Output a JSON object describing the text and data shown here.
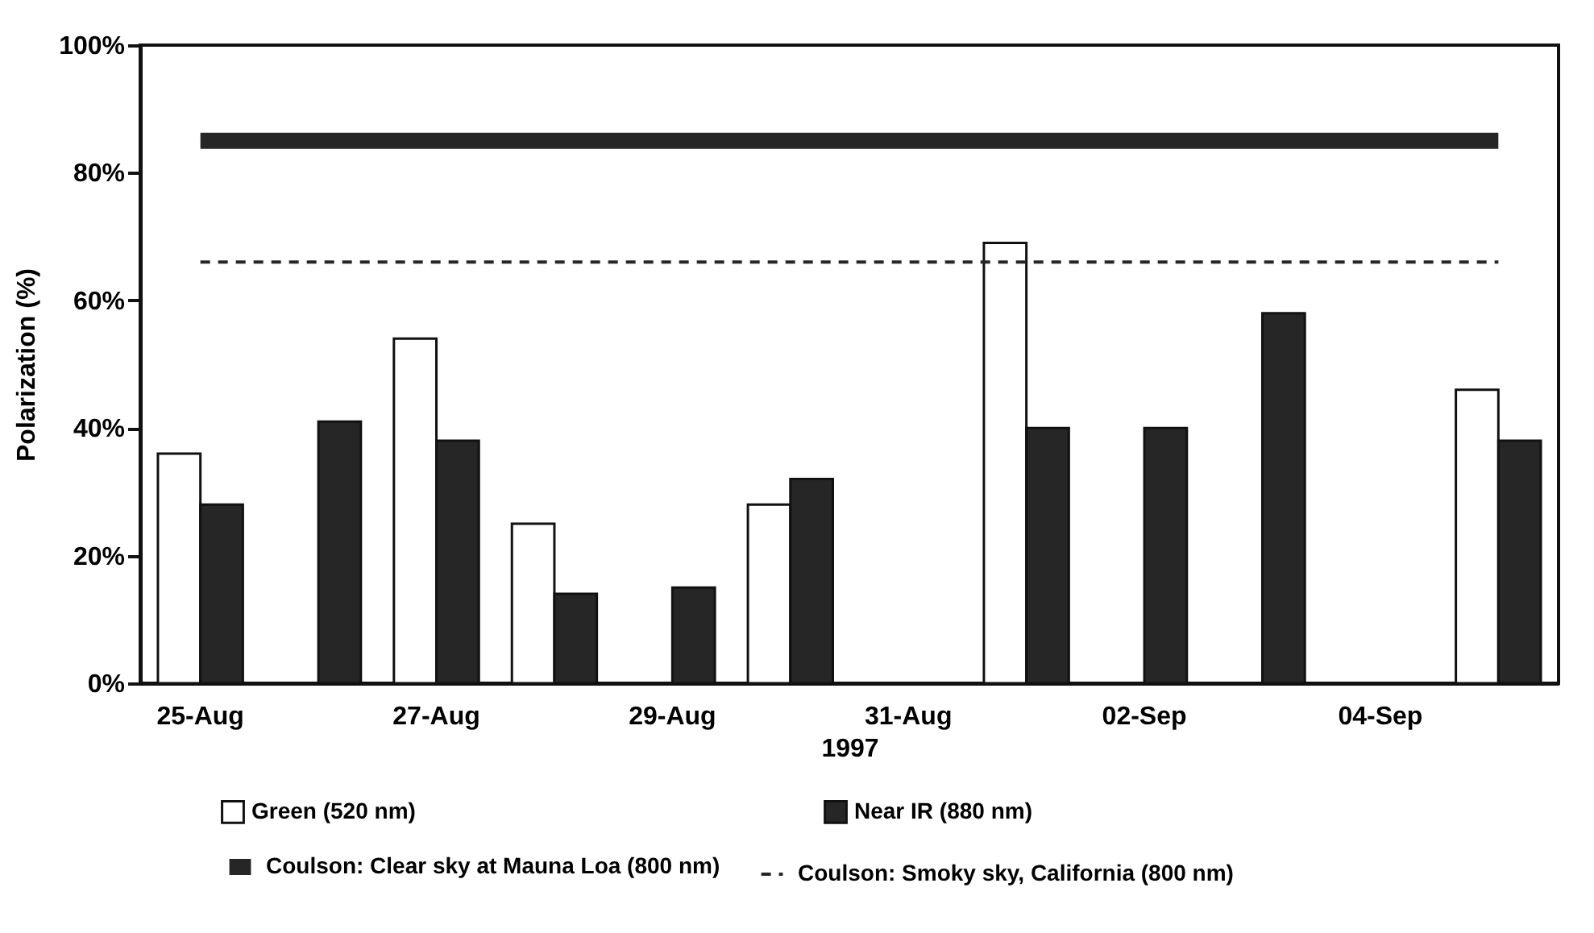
{
  "chart_data": {
    "type": "bar",
    "xlabel": "1997",
    "ylabel": "Polarization (%)",
    "categories": [
      "25-Aug",
      null,
      "27-Aug",
      null,
      "29-Aug",
      null,
      "31-Aug",
      null,
      "02-Sep",
      null,
      "04-Sep",
      null
    ],
    "series": [
      {
        "name": "Green (520 nm)",
        "color": "#ffffff",
        "values": [
          36,
          null,
          54,
          25,
          null,
          28,
          null,
          69,
          null,
          null,
          null,
          46
        ]
      },
      {
        "name": "Near IR (880 nm)",
        "color": "#262626",
        "values": [
          28,
          41,
          38,
          14,
          15,
          32,
          null,
          40,
          40,
          58,
          null,
          38
        ]
      },
      {
        "name": "Coulson: Clear sky at Mauna Loa (800 nm)",
        "type": "line",
        "line_style": "solid",
        "color": "#262626",
        "values": [
          85,
          85,
          85,
          85,
          85,
          85,
          85,
          85,
          85,
          85,
          85,
          85
        ]
      },
      {
        "name": "Coulson: Smoky sky, California (800 nm)",
        "type": "line",
        "line_style": "dashed",
        "color": "#262626",
        "values": [
          66,
          66,
          66,
          66,
          66,
          66,
          66,
          66,
          66,
          66,
          66,
          66
        ]
      }
    ],
    "ylim": [
      0,
      100
    ],
    "yticks": [
      {
        "value": 0,
        "label": "0%"
      },
      {
        "value": 20,
        "label": "20%"
      },
      {
        "value": 40,
        "label": "40%"
      },
      {
        "value": 60,
        "label": "60%"
      },
      {
        "value": 80,
        "label": "80%"
      },
      {
        "value": 100,
        "label": "100%"
      }
    ],
    "grid": false,
    "legend": "bottom",
    "marker": "none"
  }
}
